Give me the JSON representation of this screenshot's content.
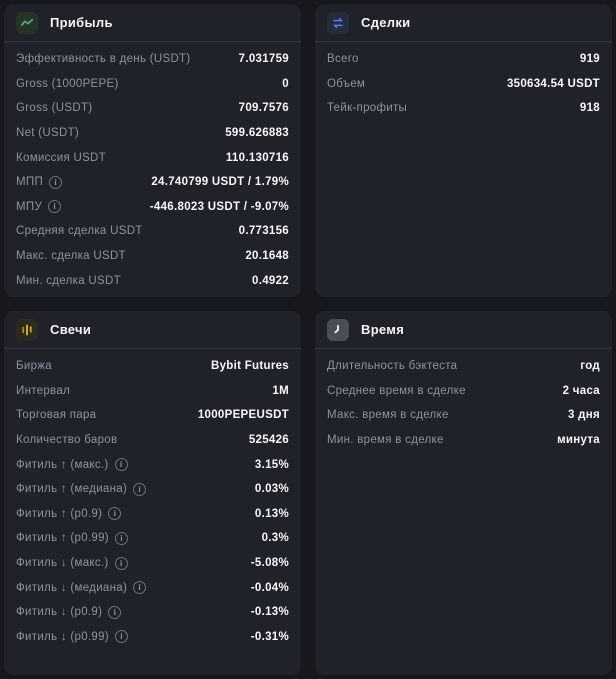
{
  "colors": {
    "page_bg": "#16181d",
    "card_bg": "#1f2229",
    "divider": "#343842",
    "label_gray": "#8d93a0",
    "value_white": "#f7f8fa",
    "profit_green": "#4caf6e",
    "trades_blue": "#4f7df3",
    "candles_gold": "#d9a21b",
    "time_gray": "#4b4e57"
  },
  "cards": {
    "profit": {
      "title": "Прибыль",
      "icon": "chart-line-icon",
      "rows": [
        {
          "label": "Эффективность в день (USDT)",
          "value": "7.031759",
          "info": false
        },
        {
          "label": "Gross (1000PEPE)",
          "value": "0",
          "info": false
        },
        {
          "label": "Gross (USDT)",
          "value": "709.7576",
          "info": false
        },
        {
          "label": "Net (USDT)",
          "value": "599.626883",
          "info": false
        },
        {
          "label": "Комиссия USDT",
          "value": "110.130716",
          "info": false
        },
        {
          "label": "МПП",
          "value": "24.740799 USDT / 1.79%",
          "info": true
        },
        {
          "label": "МПУ",
          "value": "-446.8023 USDT / -9.07%",
          "info": true
        },
        {
          "label": "Средняя сделка USDT",
          "value": "0.773156",
          "info": false
        },
        {
          "label": "Макс. сделка USDT",
          "value": "20.1648",
          "info": false
        },
        {
          "label": "Мин. сделка USDT",
          "value": "0.4922",
          "info": false
        }
      ]
    },
    "trades": {
      "title": "Сделки",
      "icon": "swap-arrows-icon",
      "rows": [
        {
          "label": "Всего",
          "value": "919",
          "info": false
        },
        {
          "label": "Объем",
          "value": "350634.54 USDT",
          "info": false
        },
        {
          "label": "Тейк-профиты",
          "value": "918",
          "info": false
        }
      ]
    },
    "candles": {
      "title": "Свечи",
      "icon": "candlestick-icon",
      "rows": [
        {
          "label": "Биржа",
          "value": "Bybit Futures",
          "info": false
        },
        {
          "label": "Интервал",
          "value": "1M",
          "info": false
        },
        {
          "label": "Торговая пара",
          "value": "1000PEPEUSDT",
          "info": false
        },
        {
          "label": "Количество баров",
          "value": "525426",
          "info": false
        },
        {
          "label": "Фитиль ↑ (макс.)",
          "value": "3.15%",
          "info": true
        },
        {
          "label": "Фитиль ↑ (медиана)",
          "value": "0.03%",
          "info": true
        },
        {
          "label": "Фитиль ↑ (p0.9)",
          "value": "0.13%",
          "info": true
        },
        {
          "label": "Фитиль ↑ (p0.99)",
          "value": "0.3%",
          "info": true
        },
        {
          "label": "Фитиль ↓ (макс.)",
          "value": "-5.08%",
          "info": true
        },
        {
          "label": "Фитиль ↓ (медиана)",
          "value": "-0.04%",
          "info": true
        },
        {
          "label": "Фитиль ↓ (p0.9)",
          "value": "-0.13%",
          "info": true
        },
        {
          "label": "Фитиль ↓ (p0.99)",
          "value": "-0.31%",
          "info": true
        }
      ]
    },
    "time": {
      "title": "Время",
      "icon": "clock-icon",
      "rows": [
        {
          "label": "Длительность бэктеста",
          "value": "год",
          "info": false
        },
        {
          "label": "Среднее время в сделке",
          "value": "2 часа",
          "info": false
        },
        {
          "label": "Макс. время в сделке",
          "value": "3 дня",
          "info": false
        },
        {
          "label": "Мин. время в сделке",
          "value": "минута",
          "info": false
        }
      ]
    }
  }
}
